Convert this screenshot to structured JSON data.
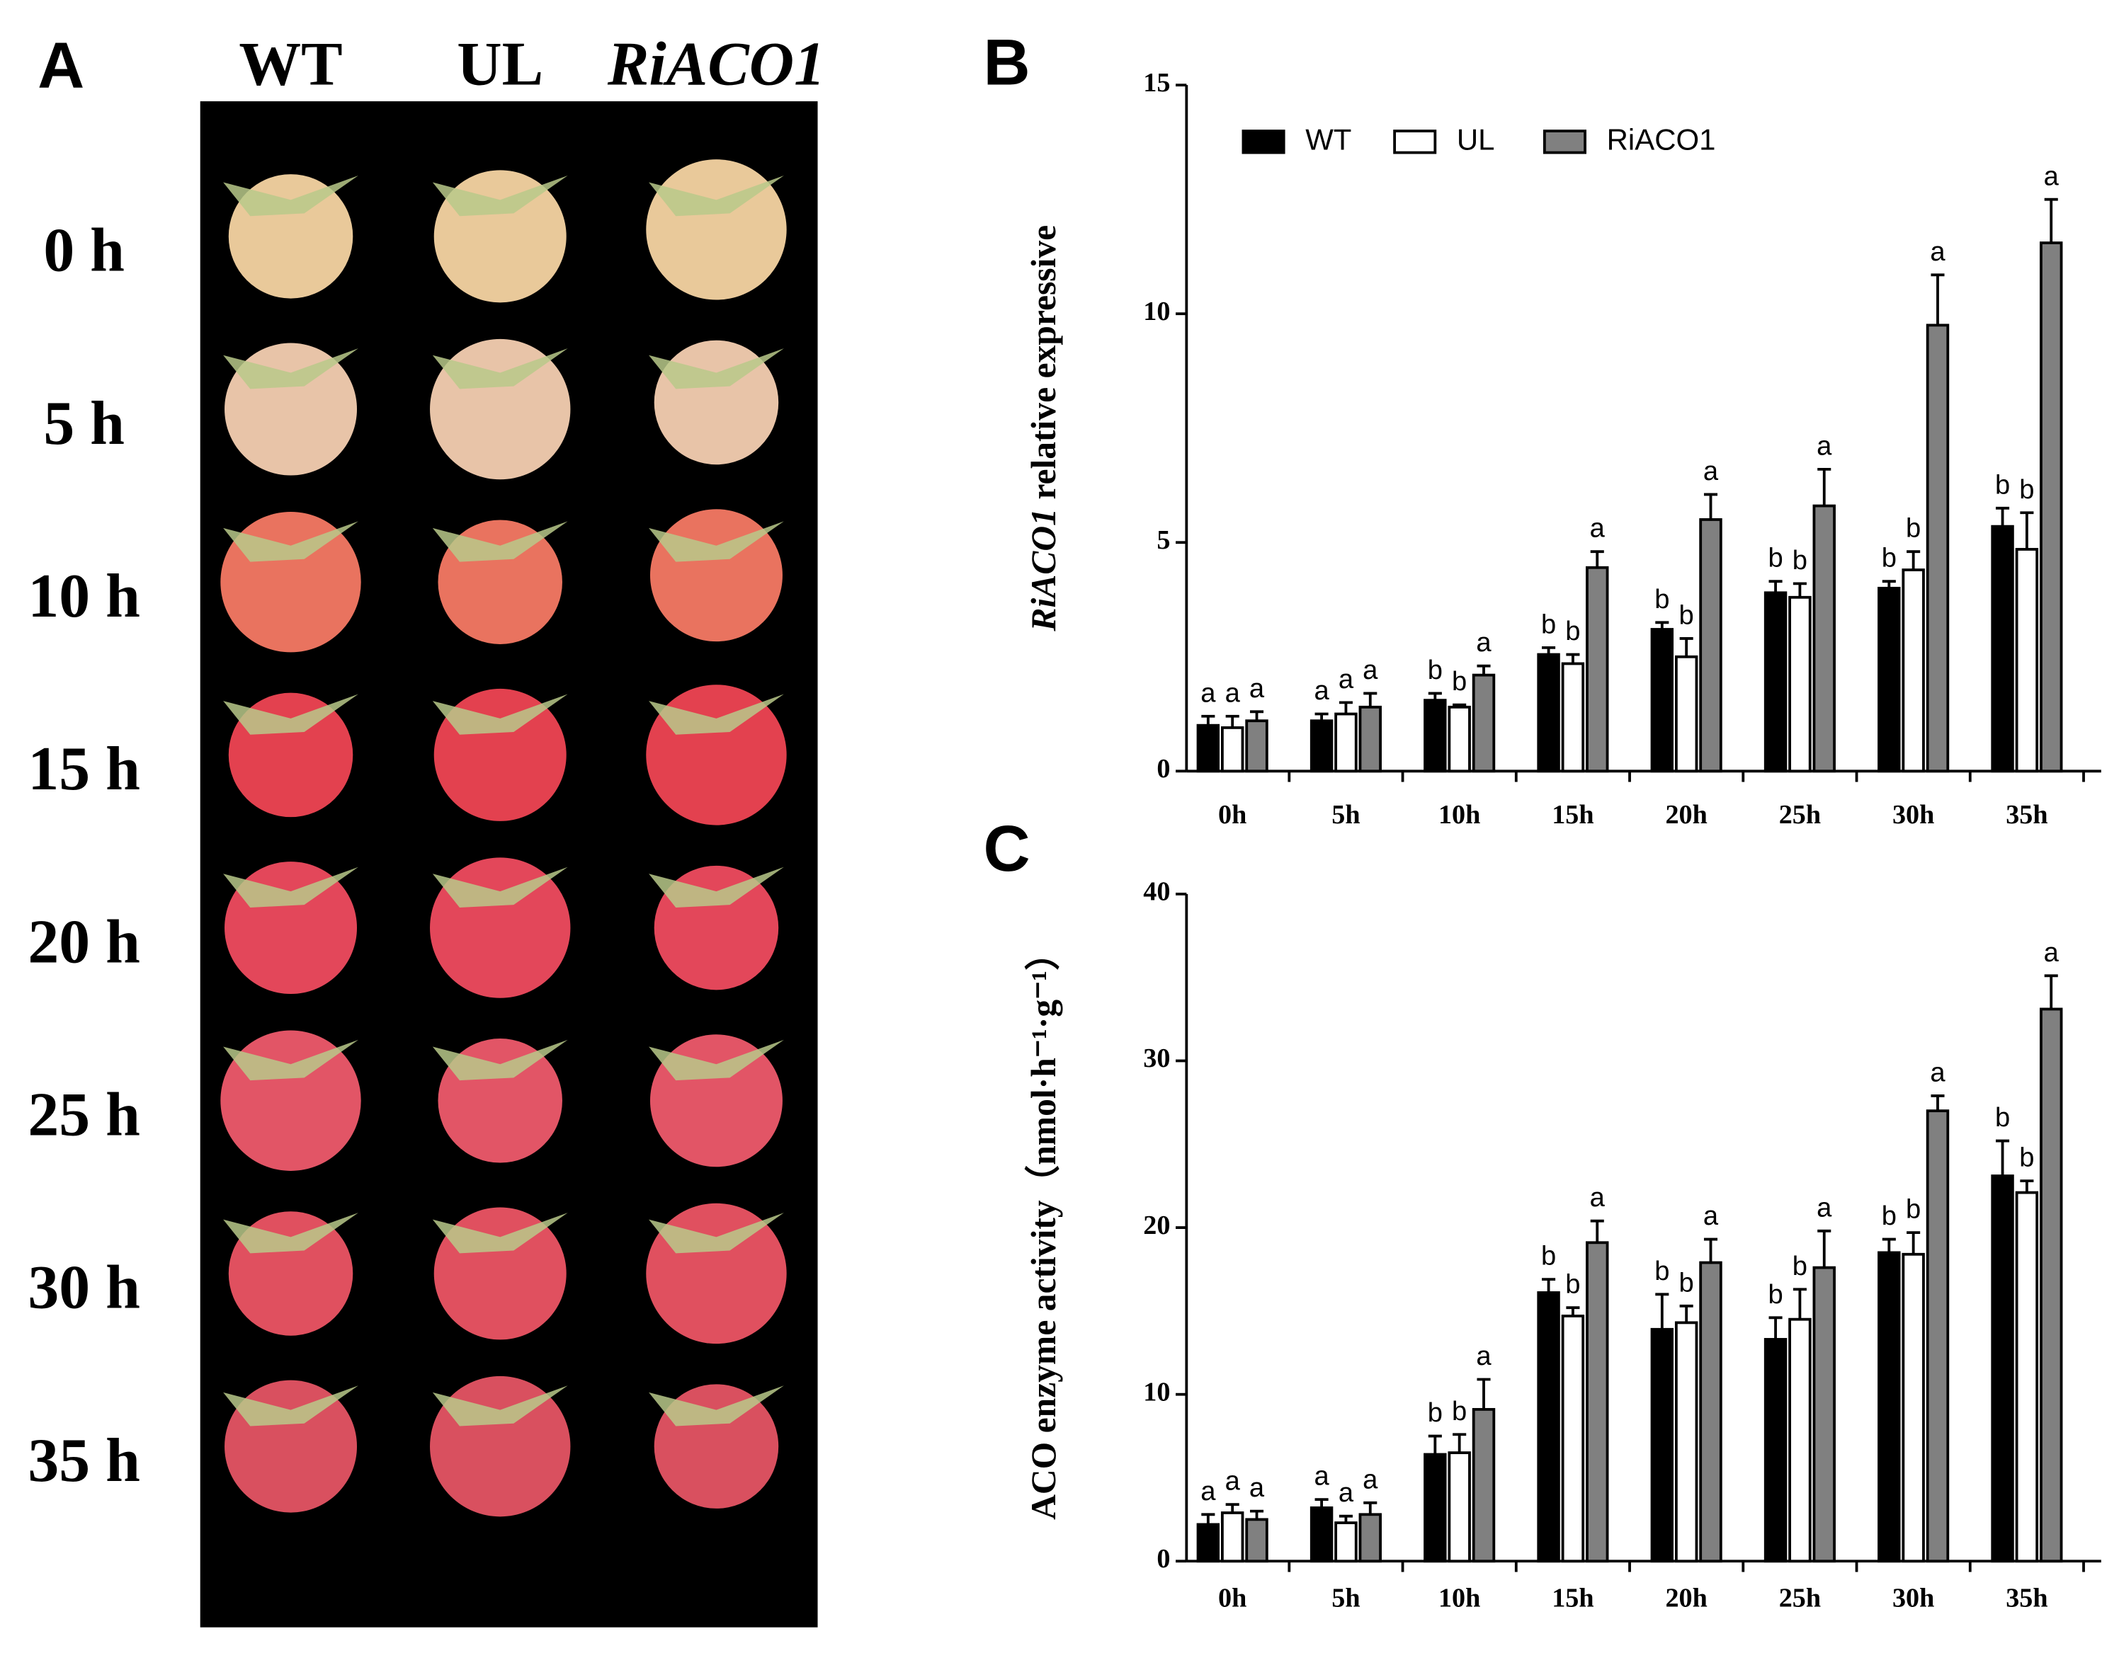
{
  "photo_panel": {
    "panel_label": "A",
    "columns": [
      "WT",
      "UL",
      "RiACO1"
    ],
    "rows": [
      "0 h",
      "5 h",
      "10 h",
      "15 h",
      "20 h",
      "25 h",
      "30 h",
      "35 h"
    ]
  },
  "chart_data": [
    {
      "type": "bar",
      "panel_label": "B",
      "ylabel_gene": "RiACO1",
      "ylabel": "relative expressive",
      "categories": [
        "0h",
        "5h",
        "10h",
        "15h",
        "20h",
        "25h",
        "30h",
        "35h"
      ],
      "series": [
        {
          "name": "WT",
          "color": "#000000",
          "values": [
            1.0,
            1.1,
            1.55,
            2.55,
            3.1,
            3.9,
            4.0,
            5.35
          ],
          "errors": [
            0.2,
            0.15,
            0.15,
            0.15,
            0.15,
            0.25,
            0.15,
            0.4
          ],
          "labels": [
            "a",
            "a",
            "b",
            "b",
            "b",
            "b",
            "b",
            "b"
          ]
        },
        {
          "name": "UL",
          "color": "#ffffff",
          "values": [
            0.95,
            1.25,
            1.4,
            2.35,
            2.5,
            3.8,
            4.4,
            4.85
          ],
          "errors": [
            0.25,
            0.25,
            0.05,
            0.2,
            0.4,
            0.3,
            0.4,
            0.8
          ],
          "labels": [
            "a",
            "a",
            "b",
            "b",
            "b",
            "b",
            "b",
            "b"
          ]
        },
        {
          "name": "RiACO1",
          "color": "#808080",
          "values": [
            1.1,
            1.4,
            2.1,
            4.45,
            5.5,
            5.8,
            9.75,
            11.55
          ],
          "errors": [
            0.2,
            0.3,
            0.2,
            0.35,
            0.55,
            0.8,
            1.1,
            0.95
          ],
          "labels": [
            "a",
            "a",
            "a",
            "a",
            "a",
            "a",
            "a",
            "a"
          ]
        }
      ],
      "ylim": [
        0,
        15
      ],
      "yticks": [
        0,
        5,
        10,
        15
      ],
      "legend": "top-left"
    },
    {
      "type": "bar",
      "panel_label": "C",
      "ylabel": "ACO enzyme activity",
      "ylabel_unit": "（nmol·h⁻¹·g⁻¹）",
      "categories": [
        "0h",
        "5h",
        "10h",
        "15h",
        "20h",
        "25h",
        "30h",
        "35h"
      ],
      "series": [
        {
          "name": "WT",
          "color": "#000000",
          "values": [
            2.2,
            3.2,
            6.4,
            16.1,
            13.9,
            13.3,
            18.5,
            23.1
          ],
          "errors": [
            0.6,
            0.5,
            1.1,
            0.8,
            2.1,
            1.3,
            0.8,
            2.1
          ],
          "labels": [
            "a",
            "a",
            "b",
            "b",
            "b",
            "b",
            "b",
            "b"
          ]
        },
        {
          "name": "UL",
          "color": "#ffffff",
          "values": [
            2.9,
            2.3,
            6.5,
            14.7,
            14.3,
            14.5,
            18.4,
            22.1
          ],
          "errors": [
            0.5,
            0.4,
            1.1,
            0.5,
            1.0,
            1.8,
            1.3,
            0.7
          ],
          "labels": [
            "a",
            "a",
            "b",
            "b",
            "b",
            "b",
            "b",
            "b"
          ]
        },
        {
          "name": "RiACO1",
          "color": "#808080",
          "values": [
            2.5,
            2.8,
            9.1,
            19.1,
            17.9,
            17.6,
            27.0,
            33.1
          ],
          "errors": [
            0.5,
            0.7,
            1.8,
            1.3,
            1.4,
            2.2,
            0.9,
            2.0
          ],
          "labels": [
            "a",
            "a",
            "a",
            "a",
            "a",
            "a",
            "a",
            "a"
          ]
        }
      ],
      "ylim": [
        0,
        40
      ],
      "yticks": [
        0,
        10,
        20,
        30,
        40
      ]
    }
  ]
}
